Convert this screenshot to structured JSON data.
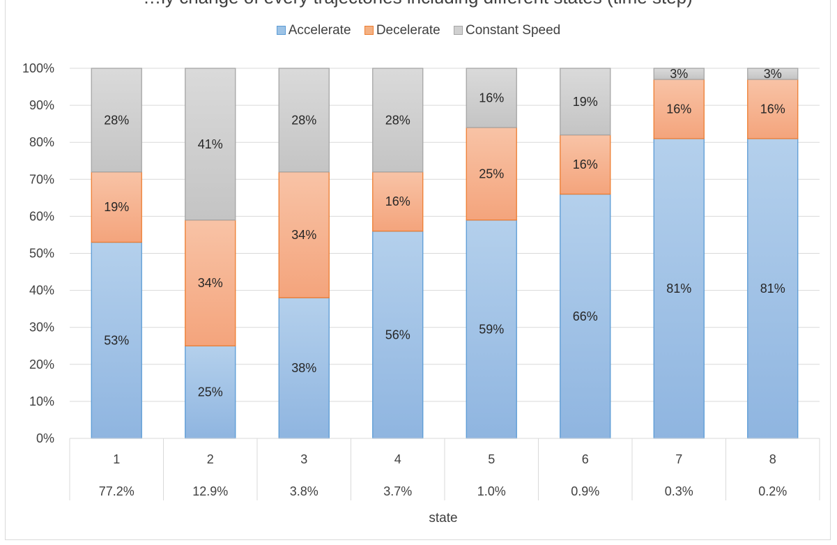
{
  "title": "…ly change of every trajectories including different states (time step)",
  "chart_data": {
    "type": "bar",
    "stacked": true,
    "percent": true,
    "categories": [
      "1",
      "2",
      "3",
      "4",
      "5",
      "6",
      "7",
      "8"
    ],
    "category_sublabels": [
      "77.2%",
      "12.9%",
      "3.8%",
      "3.7%",
      "1.0%",
      "0.9%",
      "0.3%",
      "0.2%"
    ],
    "series": [
      {
        "name": "Accelerate",
        "values": [
          53,
          25,
          38,
          56,
          59,
          66,
          81,
          81
        ],
        "color": "#9dc3e6",
        "border": "#5b9bd5"
      },
      {
        "name": "Decelerate",
        "values": [
          19,
          34,
          34,
          16,
          25,
          16,
          16,
          16
        ],
        "color": "#f4b183",
        "border": "#ed7d31"
      },
      {
        "name": "Constant Speed",
        "values": [
          28,
          41,
          28,
          28,
          16,
          19,
          3,
          3
        ],
        "color": "#d0d0d0",
        "border": "#a5a5a5"
      }
    ],
    "ylim": [
      0,
      100
    ],
    "yticks": [
      "0%",
      "10%",
      "20%",
      "30%",
      "40%",
      "50%",
      "60%",
      "70%",
      "80%",
      "90%",
      "100%"
    ],
    "xlabel": "state",
    "ylabel": "",
    "grid": true,
    "legend_position": "top"
  }
}
